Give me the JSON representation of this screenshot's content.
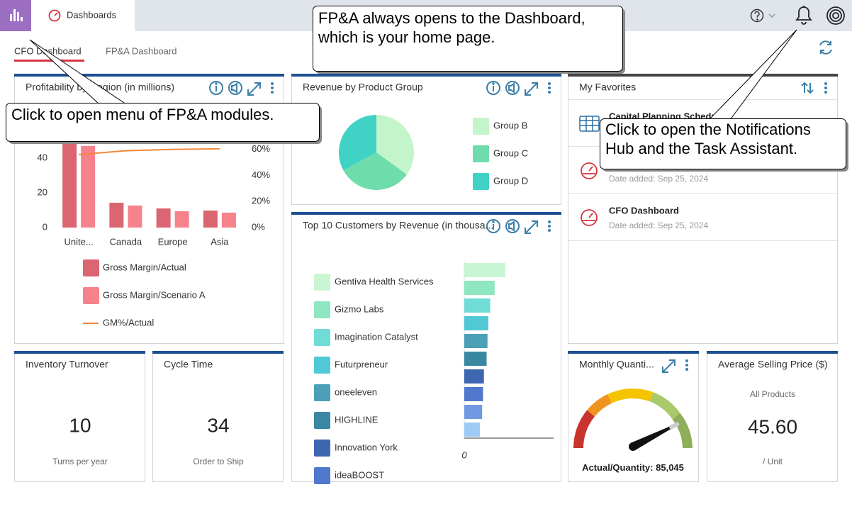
{
  "app": {
    "tab": "Dashboards"
  },
  "dashboard_tabs": [
    "CFO Dashboard",
    "FP&A Dashboard"
  ],
  "widgets": {
    "profit": {
      "type": "bar",
      "title": "Profitability by Region (in millions)",
      "categories": [
        "Unite...",
        "Canada",
        "Europe",
        "Asia"
      ],
      "series": [
        {
          "name": "Gross Margin/Actual",
          "color": "#db6571",
          "values": [
            48.5,
            14.3,
            11,
            9.8
          ]
        },
        {
          "name": "Gross Margin/Scenario A",
          "color": "#f6828c",
          "values": [
            47,
            12.7,
            9.4,
            8.6
          ]
        },
        {
          "name": "GM%/Actual",
          "color": "#f0883a",
          "axis": "y2",
          "values": [
            56,
            59,
            60,
            60.5
          ]
        }
      ],
      "ylim": [
        0,
        60
      ],
      "yticks": [
        0,
        20,
        40
      ],
      "y2lim": [
        0,
        80
      ],
      "y2ticks": [
        {
          "value": 0,
          "label": "0%"
        },
        {
          "value": 20,
          "label": "20%"
        },
        {
          "value": 40,
          "label": "40%"
        },
        {
          "value": 60,
          "label": "60%"
        }
      ]
    },
    "revenue": {
      "type": "pie",
      "title": "Revenue by Product Group",
      "categories": [
        "Group B",
        "Group C",
        "Group D"
      ],
      "values": [
        35,
        32,
        33
      ],
      "colors": [
        "#c3f4ca",
        "#6fdcab",
        "#40d2c5"
      ]
    },
    "customers": {
      "type": "hbar",
      "title": "Top 10 Customers by Revenue (in thousa...",
      "categories": [
        "Gentiva Health Services",
        "Gizmo Labs",
        "Imagination Catalyst",
        "Futurpreneur",
        "oneeleven",
        "HIGHLINE",
        "Innovation York",
        "ideaBOOST",
        null,
        null
      ],
      "values": [
        460,
        340,
        290,
        270,
        260,
        250,
        220,
        210,
        200,
        175
      ],
      "colors": [
        "#c9f6d2",
        "#8fe7c2",
        "#70dcd6",
        "#50c8d6",
        "#4b9fb6",
        "#3a87a2",
        "#3e67b1",
        "#5079cd",
        "#7099e1",
        "#9dcbf6"
      ],
      "xlim": [
        0,
        1000
      ],
      "xticks": [
        0
      ]
    },
    "favorites": {
      "title": "My Favorites",
      "items": [
        {
          "title": "Capital Planning Schedule"
        },
        {
          "date": "Date added: Sep 25, 2024"
        },
        {
          "title": "CFO Dashboard",
          "date": "Date added: Sep 25, 2024"
        }
      ]
    },
    "inventory": {
      "title": "Inventory Turnover",
      "value": 10,
      "caption": "Turns per year"
    },
    "cycle": {
      "title": "Cycle Time",
      "value": 34,
      "caption": "Order to Ship"
    },
    "gauge": {
      "type": "gauge",
      "title": "Monthly Quanti...",
      "label": "Actual/Quantity:",
      "value": 85045,
      "value_label": "85,045",
      "lim": [
        0,
        100000
      ]
    },
    "asp": {
      "title": "Average Selling Price ($)",
      "subtitle": "All Products",
      "value": "45.60",
      "caption": "/ Unit"
    }
  },
  "callouts": [
    [
      "FP&A always opens to the Dashboard,",
      "which is your home page."
    ],
    [
      "Click to open menu of FP&A modules."
    ],
    [
      "Click to open the Notifications",
      "Hub and the Task Assistant."
    ]
  ]
}
